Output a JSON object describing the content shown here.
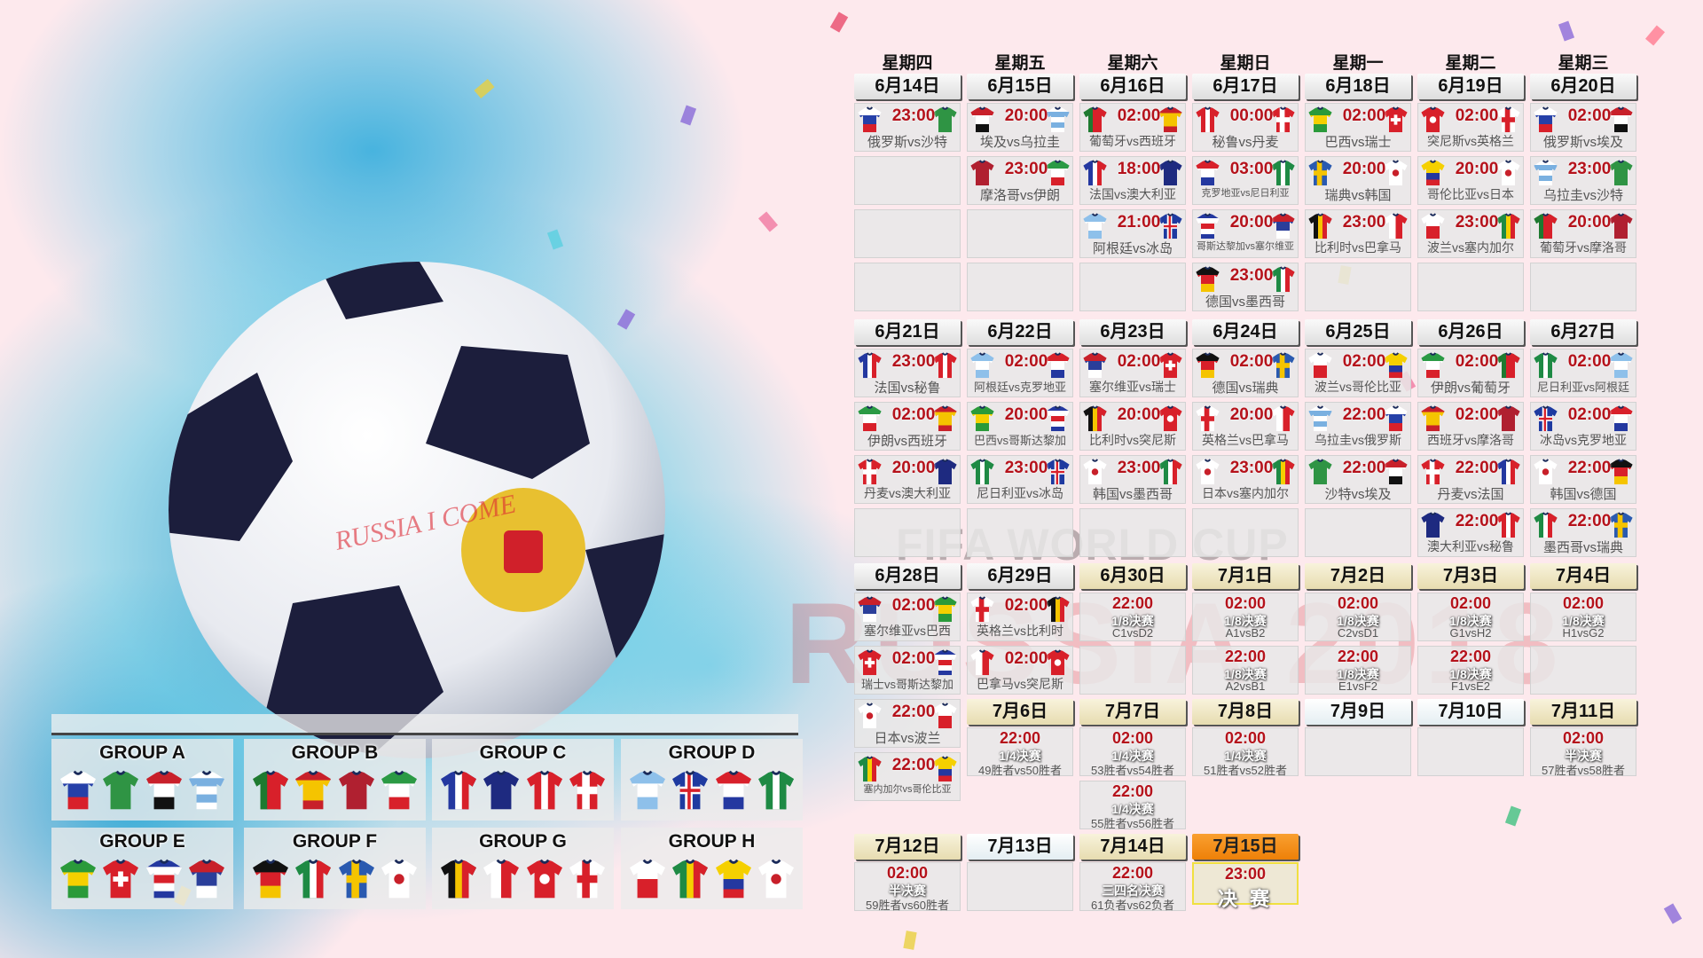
{
  "weekdays": [
    "星期四",
    "星期五",
    "星期六",
    "星期日",
    "星期一",
    "星期二",
    "星期三"
  ],
  "days": [
    {
      "date": "6月14日",
      "style": "group",
      "matches": [
        [
          "23:00",
          "俄罗斯vs沙特",
          "russia",
          "saudi"
        ]
      ]
    },
    {
      "date": "6月15日",
      "style": "group",
      "matches": [
        [
          "20:00",
          "埃及vs乌拉圭",
          "egypt",
          "uruguay"
        ],
        [
          "23:00",
          "摩洛哥vs伊朗",
          "morocco",
          "iran"
        ]
      ]
    },
    {
      "date": "6月16日",
      "style": "group",
      "matches": [
        [
          "02:00",
          "葡萄牙vs西班牙",
          "portugal",
          "spain"
        ],
        [
          "18:00",
          "法国vs澳大利亚",
          "france",
          "australia"
        ],
        [
          "21:00",
          "阿根廷vs冰岛",
          "argentina",
          "iceland"
        ]
      ]
    },
    {
      "date": "6月17日",
      "style": "group",
      "matches": [
        [
          "00:00",
          "秘鲁vs丹麦",
          "peru",
          "denmark"
        ],
        [
          "03:00",
          "克罗地亚vs尼日利亚",
          "croatia",
          "nigeria"
        ],
        [
          "20:00",
          "哥斯达黎加vs塞尔维亚",
          "costarica",
          "serbia"
        ],
        [
          "23:00",
          "德国vs墨西哥",
          "germany",
          "mexico"
        ]
      ]
    },
    {
      "date": "6月18日",
      "style": "group",
      "matches": [
        [
          "02:00",
          "巴西vs瑞士",
          "brazil",
          "switzerland"
        ],
        [
          "20:00",
          "瑞典vs韩国",
          "sweden",
          "korea"
        ],
        [
          "23:00",
          "比利时vs巴拿马",
          "belgium",
          "panama"
        ]
      ]
    },
    {
      "date": "6月19日",
      "style": "group",
      "matches": [
        [
          "02:00",
          "突尼斯vs英格兰",
          "tunisia",
          "england"
        ],
        [
          "20:00",
          "哥伦比亚vs日本",
          "colombia",
          "japan"
        ],
        [
          "23:00",
          "波兰vs塞内加尔",
          "poland",
          "senegal"
        ]
      ]
    },
    {
      "date": "6月20日",
      "style": "group",
      "matches": [
        [
          "02:00",
          "俄罗斯vs埃及",
          "russia",
          "egypt"
        ],
        [
          "23:00",
          "乌拉圭vs沙特",
          "uruguay",
          "saudi"
        ],
        [
          "20:00",
          "葡萄牙vs摩洛哥",
          "portugal",
          "morocco"
        ]
      ]
    },
    {
      "date": "6月21日",
      "style": "group",
      "matches": [
        [
          "23:00",
          "法国vs秘鲁",
          "france",
          "peru"
        ],
        [
          "02:00",
          "伊朗vs西班牙",
          "iran",
          "spain"
        ],
        [
          "20:00",
          "丹麦vs澳大利亚",
          "denmark",
          "australia"
        ]
      ]
    },
    {
      "date": "6月22日",
      "style": "group",
      "matches": [
        [
          "02:00",
          "阿根廷vs克罗地亚",
          "argentina",
          "croatia"
        ],
        [
          "20:00",
          "巴西vs哥斯达黎加",
          "brazil",
          "costarica"
        ],
        [
          "23:00",
          "尼日利亚vs冰岛",
          "nigeria",
          "iceland"
        ]
      ]
    },
    {
      "date": "6月23日",
      "style": "group",
      "matches": [
        [
          "02:00",
          "塞尔维亚vs瑞士",
          "serbia",
          "switzerland"
        ],
        [
          "20:00",
          "比利时vs突尼斯",
          "belgium",
          "tunisia"
        ],
        [
          "23:00",
          "韩国vs墨西哥",
          "korea",
          "mexico"
        ]
      ]
    },
    {
      "date": "6月24日",
      "style": "group",
      "matches": [
        [
          "02:00",
          "德国vs瑞典",
          "germany",
          "sweden"
        ],
        [
          "20:00",
          "英格兰vs巴拿马",
          "england",
          "panama"
        ],
        [
          "23:00",
          "日本vs塞内加尔",
          "japan",
          "senegal"
        ]
      ]
    },
    {
      "date": "6月25日",
      "style": "group",
      "matches": [
        [
          "02:00",
          "波兰vs哥伦比亚",
          "poland",
          "colombia"
        ],
        [
          "22:00",
          "乌拉圭vs俄罗斯",
          "uruguay",
          "russia"
        ],
        [
          "22:00",
          "沙特vs埃及",
          "saudi",
          "egypt"
        ]
      ]
    },
    {
      "date": "6月26日",
      "style": "group",
      "matches": [
        [
          "02:00",
          "伊朗vs葡萄牙",
          "iran",
          "portugal"
        ],
        [
          "02:00",
          "西班牙vs摩洛哥",
          "spain",
          "morocco"
        ],
        [
          "22:00",
          "丹麦vs法国",
          "denmark",
          "france"
        ],
        [
          "22:00",
          "澳大利亚vs秘鲁",
          "australia",
          "peru"
        ]
      ]
    },
    {
      "date": "6月27日",
      "style": "group",
      "matches": [
        [
          "02:00",
          "尼日利亚vs阿根廷",
          "nigeria",
          "argentina"
        ],
        [
          "02:00",
          "冰岛vs克罗地亚",
          "iceland",
          "croatia"
        ],
        [
          "22:00",
          "韩国vs德国",
          "korea",
          "germany"
        ],
        [
          "22:00",
          "墨西哥vs瑞典",
          "mexico",
          "sweden"
        ]
      ]
    },
    {
      "date": "6月28日",
      "style": "group",
      "matches": [
        [
          "02:00",
          "塞尔维亚vs巴西",
          "serbia",
          "brazil"
        ],
        [
          "02:00",
          "瑞士vs哥斯达黎加",
          "switzerland",
          "costarica"
        ],
        [
          "22:00",
          "日本vs波兰",
          "japan",
          "poland"
        ],
        [
          "22:00",
          "塞内加尔vs哥伦比亚",
          "senegal",
          "colombia"
        ]
      ]
    },
    {
      "date": "6月29日",
      "style": "group",
      "matches": [
        [
          "02:00",
          "英格兰vs比利时",
          "england",
          "belgium"
        ],
        [
          "02:00",
          "巴拿马vs突尼斯",
          "panama",
          "tunisia"
        ]
      ]
    },
    {
      "date": "6月30日",
      "style": "knockout",
      "ko": [
        [
          "22:00",
          "1/8决赛",
          "C1vsD2"
        ]
      ]
    },
    {
      "date": "7月1日",
      "style": "knockout",
      "ko": [
        [
          "02:00",
          "1/8决赛",
          "A1vsB2"
        ],
        [
          "22:00",
          "1/8决赛",
          "A2vsB1"
        ]
      ]
    },
    {
      "date": "7月2日",
      "style": "knockout",
      "ko": [
        [
          "02:00",
          "1/8决赛",
          "C2vsD1"
        ],
        [
          "22:00",
          "1/8决赛",
          "E1vsF2"
        ]
      ]
    },
    {
      "date": "7月3日",
      "style": "knockout",
      "ko": [
        [
          "02:00",
          "1/8决赛",
          "G1vsH2"
        ],
        [
          "22:00",
          "1/8决赛",
          "F1vsE2"
        ]
      ]
    },
    {
      "date": "7月4日",
      "style": "knockout",
      "ko": [
        [
          "02:00",
          "1/8决赛",
          "H1vsG2"
        ]
      ]
    },
    {
      "date": "7月6日",
      "style": "knockout",
      "ko": [
        [
          "22:00",
          "1/4决赛",
          "49胜者vs50胜者"
        ]
      ]
    },
    {
      "date": "7月7日",
      "style": "knockout",
      "ko": [
        [
          "02:00",
          "1/4决赛",
          "53胜者vs54胜者"
        ],
        [
          "22:00",
          "1/4决赛",
          "55胜者vs56胜者"
        ]
      ]
    },
    {
      "date": "7月8日",
      "style": "knockout",
      "ko": [
        [
          "02:00",
          "1/4决赛",
          "51胜者vs52胜者"
        ]
      ]
    },
    {
      "date": "7月9日",
      "style": "plain",
      "ko": []
    },
    {
      "date": "7月10日",
      "style": "plain",
      "ko": []
    },
    {
      "date": "7月11日",
      "style": "knockout",
      "ko": [
        [
          "02:00",
          "半决赛",
          "57胜者vs58胜者"
        ]
      ]
    },
    {
      "date": "7月12日",
      "style": "knockout",
      "ko": [
        [
          "02:00",
          "半决赛",
          "59胜者vs60胜者"
        ]
      ]
    },
    {
      "date": "7月13日",
      "style": "plain",
      "ko": []
    },
    {
      "date": "7月14日",
      "style": "knockout",
      "ko": [
        [
          "22:00",
          "三四名决赛",
          "61负者vs62负者"
        ]
      ]
    },
    {
      "date": "7月15日",
      "style": "final",
      "final": {
        "time": "23:00",
        "stage": "决 赛"
      }
    }
  ],
  "groups": [
    {
      "name": "GROUP A",
      "teams": [
        "russia",
        "saudi",
        "egypt",
        "uruguay"
      ]
    },
    {
      "name": "GROUP B",
      "teams": [
        "portugal",
        "spain",
        "morocco",
        "iran"
      ]
    },
    {
      "name": "GROUP C",
      "teams": [
        "france",
        "australia",
        "peru",
        "denmark"
      ]
    },
    {
      "name": "GROUP D",
      "teams": [
        "argentina",
        "iceland",
        "croatia",
        "nigeria"
      ]
    },
    {
      "name": "GROUP E",
      "teams": [
        "brazil",
        "switzerland",
        "costarica",
        "serbia"
      ]
    },
    {
      "name": "GROUP F",
      "teams": [
        "germany",
        "mexico",
        "sweden",
        "korea"
      ]
    },
    {
      "name": "GROUP G",
      "teams": [
        "belgium",
        "panama",
        "tunisia",
        "england"
      ]
    },
    {
      "name": "GROUP H",
      "teams": [
        "poland",
        "senegal",
        "colombia",
        "japan"
      ]
    }
  ],
  "watermark": {
    "line1": "FIFA WORLD CUP",
    "line2": "RUSSIA 2018"
  },
  "ball_text": "RUSSIA I COME",
  "colors": {
    "time": "#b5121b",
    "final_header": "#ee8008",
    "knockout_header": "#e7dcb0",
    "background": "#fde9ed"
  }
}
